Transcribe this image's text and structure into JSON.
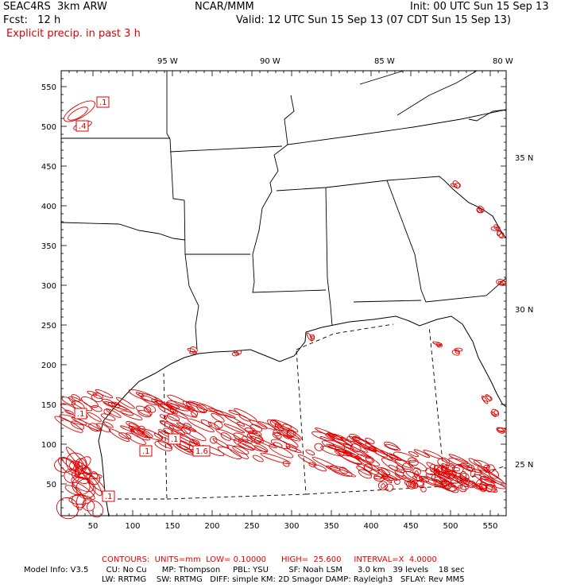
{
  "header": {
    "model": "SEAC4RS  3km ARW",
    "org": "NCAR/MMM",
    "init": "Init: 00 UTC Sun 15 Sep 13",
    "fcst": "Fcst:   12 h",
    "valid": "Valid: 12 UTC Sun 15 Sep 13 (07 CDT Sun 15 Sep 13)",
    "field": "Explicit precip. in past 3 h"
  },
  "axes": {
    "x_ticks": [
      "50",
      "100",
      "150",
      "200",
      "250",
      "300",
      "350",
      "400",
      "450",
      "500",
      "550"
    ],
    "y_ticks": [
      "50",
      "100",
      "150",
      "200",
      "250",
      "300",
      "350",
      "400",
      "450",
      "500",
      "550"
    ],
    "lon_labels": [
      "95 W",
      "90 W",
      "85 W",
      "80 W"
    ],
    "lat_labels": [
      "35 N",
      "30 N",
      "25 N"
    ]
  },
  "contour_labels": [
    ".1",
    ".4",
    ".1",
    ".1",
    ".1",
    "1.6",
    ".1"
  ],
  "footer": {
    "contours": "CONTOURS:  UNITS=mm  LOW= 0.10000      HIGH=  25.600     INTERVAL=X  4.0000",
    "model_info": "Model Info: V3.5       CU: No Cu      MP: Thompson     PBL: YSU        SF: Noah LSM      3.0 km   39 levels    18 sec",
    "model_info2": "LW: RRTMG    SW: RRTMG   DIFF: simple KM: 2D Smagor DAMP: Rayleigh3   SFLAY: Rev MM5"
  },
  "colors": {
    "contour": "#e00000",
    "map_lines": "#000000",
    "text_red": "#e00000"
  }
}
